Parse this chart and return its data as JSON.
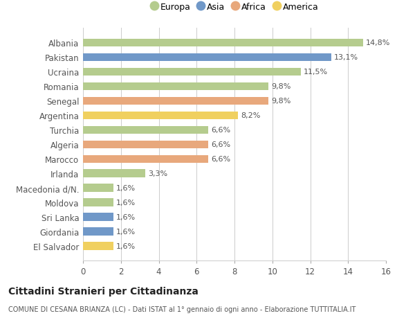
{
  "countries": [
    "Albania",
    "Pakistan",
    "Ucraina",
    "Romania",
    "Senegal",
    "Argentina",
    "Turchia",
    "Algeria",
    "Marocco",
    "Irlanda",
    "Macedonia d/N.",
    "Moldova",
    "Sri Lanka",
    "Giordania",
    "El Salvador"
  ],
  "values": [
    14.8,
    13.1,
    11.5,
    9.8,
    9.8,
    8.2,
    6.6,
    6.6,
    6.6,
    3.3,
    1.6,
    1.6,
    1.6,
    1.6,
    1.6
  ],
  "categories": [
    "Europa",
    "Asia",
    "Europa",
    "Europa",
    "Africa",
    "America",
    "Europa",
    "Africa",
    "Africa",
    "Europa",
    "Europa",
    "Europa",
    "Asia",
    "Asia",
    "America"
  ],
  "colors": {
    "Europa": "#b5cc8e",
    "Asia": "#7098c8",
    "Africa": "#e8a87c",
    "America": "#f0d060"
  },
  "xlim": [
    0,
    16
  ],
  "xticks": [
    0,
    2,
    4,
    6,
    8,
    10,
    12,
    14,
    16
  ],
  "title": "Cittadini Stranieri per Cittadinanza",
  "subtitle": "COMUNE DI CESANA BRIANZA (LC) - Dati ISTAT al 1° gennaio di ogni anno - Elaborazione TUTTITALIA.IT",
  "background_color": "#ffffff",
  "grid_color": "#cccccc",
  "label_fontsize": 8.5,
  "value_fontsize": 8,
  "title_fontsize": 10,
  "subtitle_fontsize": 7
}
